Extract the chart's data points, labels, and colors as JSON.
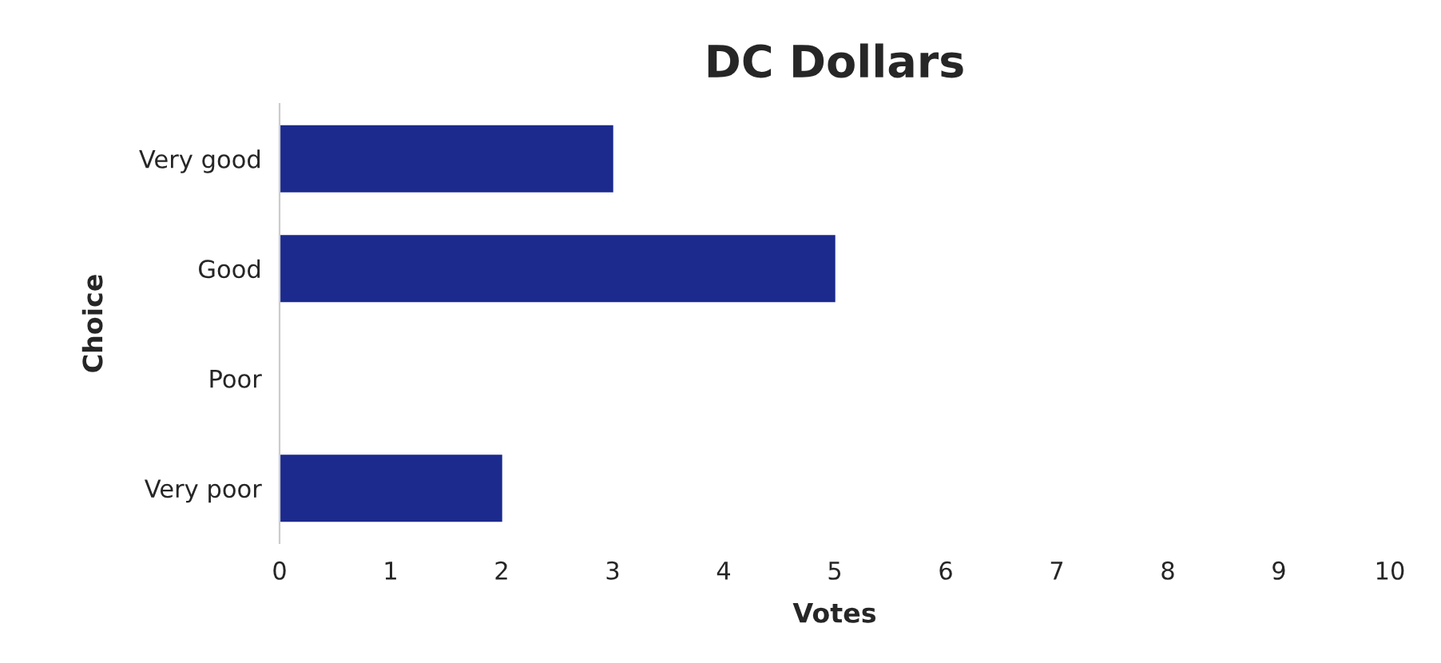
{
  "chart_data": {
    "type": "bar",
    "orientation": "horizontal",
    "title": "DC Dollars",
    "xlabel": "Votes",
    "ylabel": "Choice",
    "categories": [
      "Very good",
      "Good",
      "Poor",
      "Very poor"
    ],
    "values": [
      3,
      5,
      0,
      2
    ],
    "color": "#1b2a8c",
    "xlim": [
      0,
      10
    ],
    "xticks": [
      0,
      1,
      2,
      3,
      4,
      5,
      6,
      7,
      8,
      9,
      10
    ],
    "grid": false
  }
}
